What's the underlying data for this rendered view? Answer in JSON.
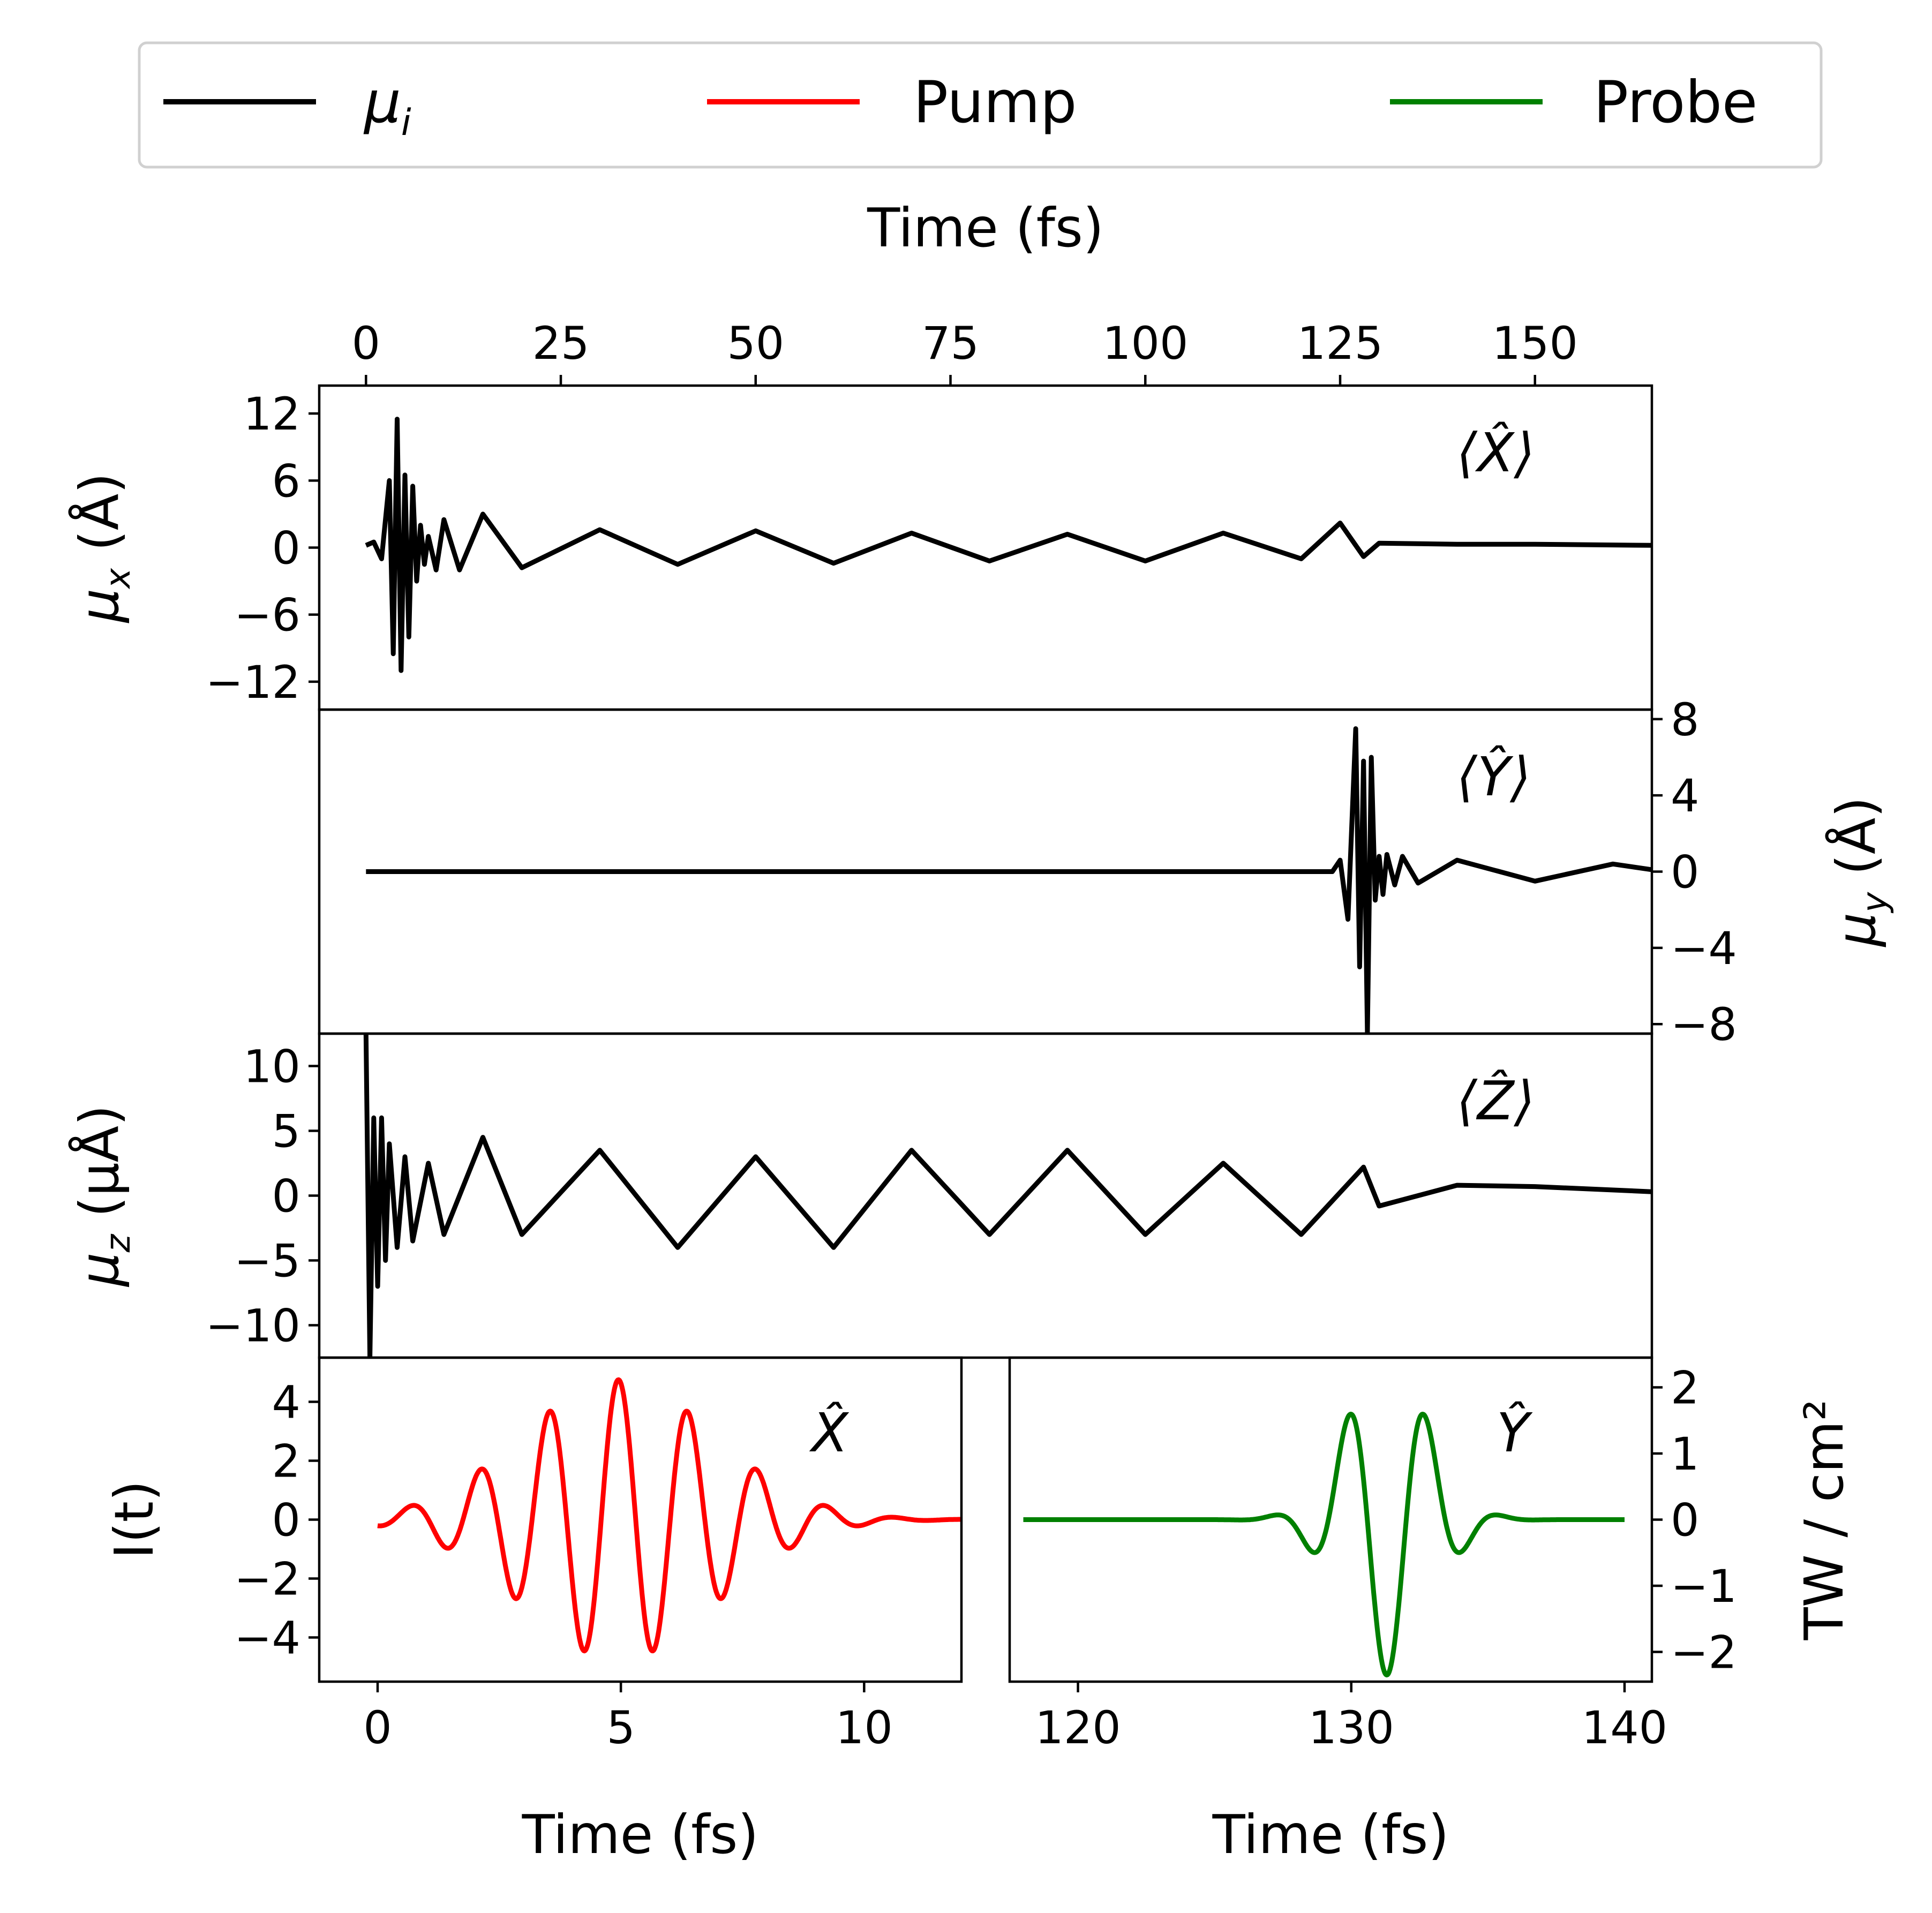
{
  "legend": {
    "position": "top-center",
    "entries": [
      {
        "label": "μ",
        "sub": "i",
        "color": "#000000"
      },
      {
        "label": "Pump",
        "color": "#ff0000"
      },
      {
        "label": "Probe",
        "color": "#008000"
      }
    ]
  },
  "chart_data": [
    {
      "type": "line",
      "panel": "mu_x",
      "annotation": "⟨X̂⟩",
      "top_axis": {
        "label": "Time (fs)",
        "ticks": [
          0,
          25,
          50,
          75,
          100,
          125,
          150
        ],
        "range": [
          -6,
          165
        ]
      },
      "ylabel": {
        "main": "μ",
        "sub": "x",
        "unit": " (Å)"
      },
      "yticks": [
        -12,
        -6,
        0,
        6,
        12
      ],
      "yticklabels": [
        "−12",
        "−6",
        "0",
        "6",
        "12"
      ],
      "ylim": [
        -14.5,
        14.5
      ],
      "xlim": [
        -6,
        165
      ],
      "series": [
        {
          "color": "#000000",
          "x": [
            0,
            1,
            2,
            3,
            3.5,
            4,
            4.5,
            5,
            5.5,
            6,
            6.5,
            7,
            7.5,
            8,
            9,
            10,
            12,
            15,
            20,
            30,
            40,
            50,
            60,
            70,
            80,
            90,
            100,
            110,
            120,
            125,
            128,
            130,
            140,
            150,
            165
          ],
          "y": [
            0.2,
            0.5,
            -1,
            6,
            -9.5,
            11.5,
            -11,
            6.5,
            -8,
            5.5,
            -3,
            2,
            -1.5,
            1,
            -2,
            2.5,
            -2,
            3,
            -1.8,
            1.6,
            -1.5,
            1.5,
            -1.4,
            1.3,
            -1.2,
            1.2,
            -1.2,
            1.3,
            -1,
            2.2,
            -0.8,
            0.4,
            0.3,
            0.3,
            0.2
          ]
        }
      ]
    },
    {
      "type": "line",
      "panel": "mu_y",
      "annotation": "⟨Ŷ⟩",
      "ylabel": {
        "main": "μ",
        "sub": "y",
        "unit": " (Å)"
      },
      "yticks": [
        -8,
        -4,
        0,
        4,
        8
      ],
      "yticklabels": [
        "−8",
        "−4",
        "0",
        "4",
        "8"
      ],
      "ylim": [
        -8.5,
        8.5
      ],
      "xlim": [
        -6,
        165
      ],
      "series": [
        {
          "color": "#000000",
          "x": [
            0,
            40,
            80,
            120,
            124,
            125,
            126,
            127,
            127.5,
            128,
            128.5,
            129,
            129.5,
            130,
            130.5,
            131,
            132,
            133,
            135,
            140,
            150,
            160,
            165
          ],
          "y": [
            0,
            0,
            0,
            0,
            0,
            0.6,
            -2.5,
            7.5,
            -5,
            5.8,
            -8.5,
            6,
            -1.5,
            0.8,
            -1.2,
            0.9,
            -0.7,
            0.8,
            -0.6,
            0.6,
            -0.5,
            0.4,
            0.1
          ]
        }
      ]
    },
    {
      "type": "line",
      "panel": "mu_z",
      "annotation": "⟨Ẑ⟩",
      "ylabel": {
        "main": "μ",
        "sub": "z",
        "unit": " (μÅ)"
      },
      "yticks": [
        -10,
        -5,
        0,
        5,
        10
      ],
      "yticklabels": [
        "−10",
        "−5",
        "0",
        "5",
        "10"
      ],
      "ylim": [
        -12.5,
        12.5
      ],
      "xlim": [
        -6,
        165
      ],
      "series": [
        {
          "color": "#000000",
          "x": [
            0,
            0.5,
            1,
            1.5,
            2,
            2.5,
            3,
            4,
            5,
            6,
            8,
            10,
            15,
            20,
            30,
            40,
            50,
            60,
            70,
            80,
            90,
            100,
            110,
            120,
            128,
            130,
            140,
            150,
            165
          ],
          "y": [
            12.5,
            -12.5,
            6,
            -7,
            6,
            -5,
            4,
            -4,
            3,
            -3.5,
            2.5,
            -3,
            4.5,
            -3,
            3.5,
            -4,
            3,
            -4,
            3.5,
            -3,
            3.5,
            -3,
            2.5,
            -3,
            2.2,
            -0.8,
            0.8,
            0.7,
            0.3
          ]
        }
      ]
    },
    {
      "type": "line",
      "panel": "pump",
      "annotation": "X̂",
      "ylabel": "I(t)",
      "xlabel": "Time (fs)",
      "xticks": [
        0,
        5,
        10
      ],
      "xlim": [
        -1.2,
        12
      ],
      "yticks": [
        -4,
        -2,
        0,
        2,
        4
      ],
      "yticklabels": [
        "−4",
        "−2",
        "0",
        "2",
        "4"
      ],
      "ylim": [
        -5.5,
        5.5
      ],
      "series": [
        {
          "name": "Pump",
          "color": "#ff0000",
          "pulse": {
            "amplitude": 4.75,
            "t0": 4.95,
            "sigma": 2.8,
            "period": 1.42,
            "t_start": 0,
            "t_end": 12
          }
        }
      ]
    },
    {
      "type": "line",
      "panel": "probe",
      "annotation": "Ŷ",
      "ylabel": "TW / cm²",
      "xlabel": "Time (fs)",
      "xticks": [
        120,
        130,
        140
      ],
      "xlim": [
        117.5,
        141
      ],
      "yticks": [
        -2,
        -1,
        0,
        1,
        2
      ],
      "yticklabels": [
        "−2",
        "−1",
        "0",
        "1",
        "2"
      ],
      "ylim": [
        -2.45,
        2.45
      ],
      "series": [
        {
          "name": "Probe",
          "color": "#008000",
          "pulse": {
            "amplitude": -2.35,
            "t0": 131.3,
            "sigma": 2.2,
            "period": 2.85,
            "t_start": 118,
            "t_end": 140
          }
        }
      ]
    }
  ]
}
